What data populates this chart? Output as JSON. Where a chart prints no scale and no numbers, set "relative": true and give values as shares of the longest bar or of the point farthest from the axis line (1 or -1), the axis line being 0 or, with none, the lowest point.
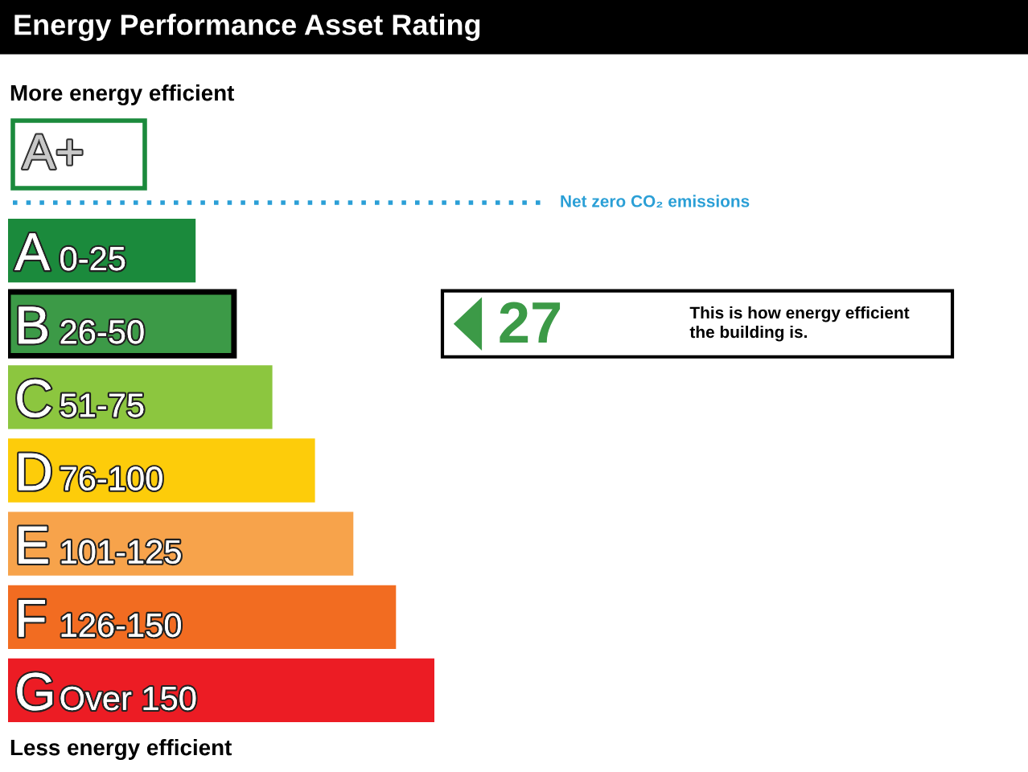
{
  "chart_data": {
    "type": "bar",
    "orientation": "horizontal",
    "relative": true,
    "title": "Energy Performance Asset Rating",
    "categories": [
      "A 0-25",
      "B 26-50",
      "C 51-75",
      "D 76-100",
      "E 101-125",
      "F 126-150",
      "G Over 150"
    ],
    "values": [
      0.44,
      0.53,
      0.62,
      0.72,
      0.81,
      0.91,
      1
    ],
    "colors": [
      "#1b8a3c",
      "#3c9a47",
      "#8cc63f",
      "#fdcc0a",
      "#f7a34b",
      "#f26c21",
      "#ec1c24"
    ],
    "annotations": [
      "More energy efficient",
      "Less energy efficient",
      "A+",
      "Net zero CO₂ emissions",
      "27",
      "This is how energy efficient\nthe building is."
    ],
    "legend": false
  }
}
